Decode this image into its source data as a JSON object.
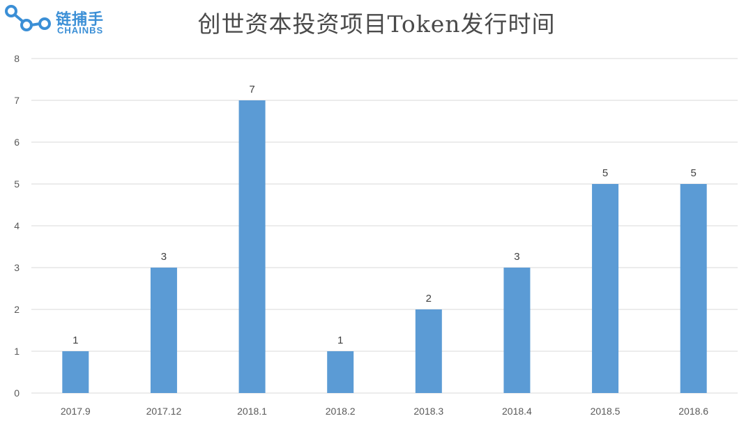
{
  "logo": {
    "cn": "链捕手",
    "en": "CHAINBS"
  },
  "chart_data": {
    "type": "bar",
    "title": "创世资本投资项目Token发行时间",
    "xlabel": "",
    "ylabel": "",
    "categories": [
      "2017.9",
      "2017.12",
      "2018.1",
      "2018.2",
      "2018.3",
      "2018.4",
      "2018.5",
      "2018.6"
    ],
    "values": [
      1,
      3,
      7,
      1,
      2,
      3,
      5,
      5
    ],
    "ylim": [
      0,
      8
    ],
    "yticks": [
      "0",
      "1",
      "2",
      "3",
      "4",
      "5",
      "6",
      "7",
      "8"
    ],
    "grid": true,
    "data_labels": true,
    "colors": {
      "bar": "#5b9bd5",
      "grid": "#d9d9d9"
    }
  }
}
